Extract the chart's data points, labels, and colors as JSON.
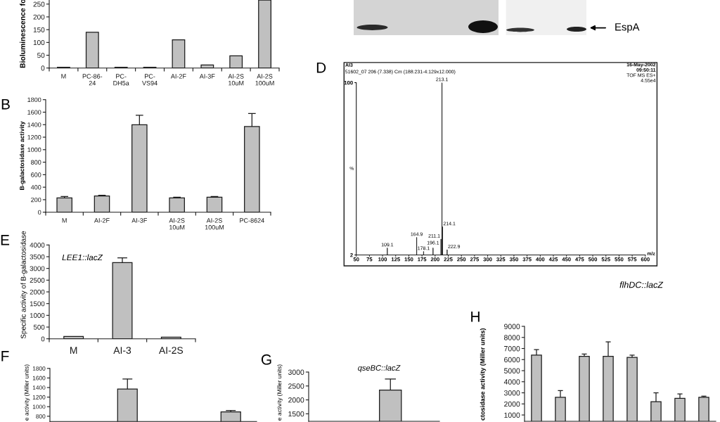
{
  "chart_data": [
    {
      "type": "bar",
      "categories": [
        "M",
        "PC-86-\n24",
        "PC-\nDH5a",
        "PC-\nVS94",
        "AI-2F",
        "AI-3F",
        "AI-2S\n10uM",
        "AI-2S\n100uM"
      ],
      "values": [
        3,
        140,
        3,
        3,
        110,
        12,
        48,
        266
      ],
      "color": "#c0c0c0",
      "ylabel": "Bioluminescence fo",
      "ylim": [
        0,
        266
      ],
      "yticks": [
        0,
        50,
        100,
        150,
        200,
        250
      ]
    },
    {
      "type": "other",
      "annotations": [
        "EspA"
      ]
    },
    {
      "type": "bar",
      "categories": [
        "M",
        "AI-2F",
        "AI-3F",
        "AI-2S\n10uM",
        "AI-2S\n100uM",
        "PC-8624"
      ],
      "values": [
        230,
        260,
        1400,
        230,
        240,
        1370
      ],
      "errors": [
        [
          230,
          250
        ],
        [
          260,
          270
        ],
        [
          1400,
          1550
        ],
        [
          230,
          240
        ],
        [
          240,
          250
        ],
        [
          1370,
          1580
        ]
      ],
      "color": "#c0c0c0",
      "ylabel": "B-galactosidase activity",
      "ylim": [
        0,
        1800
      ],
      "yticks": [
        0,
        200,
        400,
        600,
        800,
        1000,
        1200,
        1400,
        1600,
        1800
      ],
      "annotations": [
        "B"
      ]
    },
    {
      "type": "bar",
      "title": "AI3",
      "x": [
        109.1,
        164.9,
        178.1,
        196.1,
        211.1,
        213.1,
        214.1,
        222.9
      ],
      "values": [
        6,
        12,
        4,
        6,
        11,
        100,
        18,
        5
      ],
      "color": "#000000",
      "xlabel": "m/z",
      "ylabel": "%",
      "xlim": [
        50,
        600
      ],
      "xticks": [
        50,
        75,
        100,
        125,
        150,
        175,
        200,
        225,
        250,
        275,
        300,
        325,
        350,
        375,
        400,
        425,
        450,
        475,
        500,
        525,
        550,
        575,
        600
      ],
      "ylim": [
        2,
        100
      ],
      "yticks": [
        2,
        100
      ],
      "annotations": [
        "D",
        "51602_07 206 (7.338) Cm (188:231-4:129x12.000)",
        "16-May-2002",
        "09:50:11",
        "TOF MS ES+",
        "4.55e4",
        {
          "text": "109.1",
          "x": 109.1,
          "y": 6
        },
        {
          "text": "164.9",
          "x": 164.9,
          "y": 12
        },
        {
          "text": "178.1",
          "x": 178.1,
          "y": 4
        },
        {
          "text": "196.1",
          "x": 196.1,
          "y": 6
        },
        {
          "text": "211.1",
          "x": 211.1,
          "y": 11
        },
        {
          "text": "213.1",
          "x": 213.1,
          "y": 100
        },
        {
          "text": "214.1",
          "x": 214.1,
          "y": 18
        },
        {
          "text": "222.9",
          "x": 222.9,
          "y": 5
        }
      ]
    },
    {
      "type": "bar",
      "categories": [
        "M",
        "AI-3",
        "AI-2S"
      ],
      "values": [
        100,
        3250,
        70
      ],
      "errors": [
        null,
        [
          3250,
          3450
        ],
        null
      ],
      "color": "#c0c0c0",
      "ylabel": "Specific activity of B-galactosidase",
      "ylim": [
        0,
        4000
      ],
      "yticks": [
        0,
        500,
        1000,
        1500,
        2000,
        2500,
        3000,
        3500,
        4000
      ],
      "annotations": [
        "E",
        "LEE1::lacZ"
      ]
    },
    {
      "type": "bar",
      "categories": [
        null,
        null,
        null,
        null
      ],
      "values": [
        null,
        1370,
        null,
        890
      ],
      "errors": [
        null,
        [
          1370,
          1580
        ],
        null,
        [
          890,
          920
        ]
      ],
      "color": "#c0c0c0",
      "ylabel": "e activity (Miller units)",
      "ylim": [
        690,
        1800
      ],
      "yticks": [
        800,
        1000,
        1200,
        1400,
        1600,
        1800
      ],
      "tick_labels": "y",
      "annotations": [
        "F"
      ]
    },
    {
      "type": "bar",
      "title": "qseBC::lacZ",
      "categories": [
        null,
        null,
        null,
        null
      ],
      "values": [
        null,
        null,
        2350,
        null
      ],
      "errors": [
        null,
        null,
        [
          2350,
          2750
        ],
        null
      ],
      "color": "#c0c0c0",
      "ylabel": "e activity (Miller units)",
      "ylim": [
        1230,
        3000
      ],
      "yticks": [
        1500,
        2000,
        2500,
        3000
      ],
      "tick_labels": "y",
      "annotations": [
        "G"
      ]
    },
    {
      "type": "bar",
      "title": "flhDC::lacZ",
      "categories": [
        null,
        null,
        null,
        null,
        null,
        null,
        null,
        null
      ],
      "values": [
        6400,
        2600,
        6300,
        6300,
        6200,
        2200,
        2500,
        2600
      ],
      "errors": [
        [
          6400,
          6900
        ],
        [
          2600,
          3200
        ],
        [
          6300,
          6500
        ],
        [
          6300,
          7600
        ],
        [
          6200,
          6400
        ],
        [
          2200,
          3000
        ],
        [
          2500,
          2900
        ],
        [
          2600,
          2700
        ]
      ],
      "color": "#c0c0c0",
      "ylabel": "ctosidase activity (Miller units)",
      "ylim": [
        430,
        9000
      ],
      "yticks": [
        1000,
        2000,
        3000,
        4000,
        5000,
        6000,
        7000,
        8000,
        9000
      ],
      "tick_labels": "y",
      "annotations": [
        "H"
      ]
    }
  ]
}
